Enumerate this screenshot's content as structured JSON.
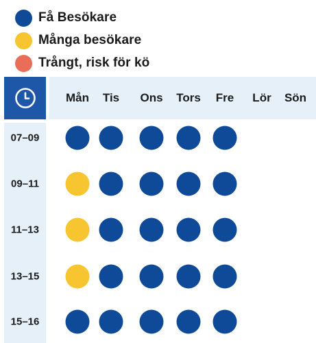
{
  "legend": [
    {
      "label": "Få Besökare",
      "color": "#0e4a98"
    },
    {
      "label": "Många besökare",
      "color": "#f7c52f"
    },
    {
      "label": "Trångt, risk för kö",
      "color": "#ea6d58"
    }
  ],
  "clock_icon": "clock-icon",
  "days": [
    "Mån",
    "Tis",
    "Ons",
    "Tors",
    "Fre",
    "Lör",
    "Sön"
  ],
  "colors": {
    "header_accent": "#1e57a8",
    "header_bg": "#e6f0f9",
    "few": "#0e4a98",
    "many": "#f7c52f",
    "crowded": "#ea6d58"
  },
  "rows": [
    {
      "time": "07–09",
      "levels": [
        "few",
        "few",
        "few",
        "few",
        "few",
        null,
        null
      ]
    },
    {
      "time": "09–11",
      "levels": [
        "many",
        "few",
        "few",
        "few",
        "few",
        null,
        null
      ]
    },
    {
      "time": "11–13",
      "levels": [
        "many",
        "few",
        "few",
        "few",
        "few",
        null,
        null
      ]
    },
    {
      "time": "13–15",
      "levels": [
        "many",
        "few",
        "few",
        "few",
        "few",
        null,
        null
      ]
    },
    {
      "time": "15–16",
      "levels": [
        "few",
        "few",
        "few",
        "few",
        "few",
        null,
        null
      ]
    }
  ]
}
